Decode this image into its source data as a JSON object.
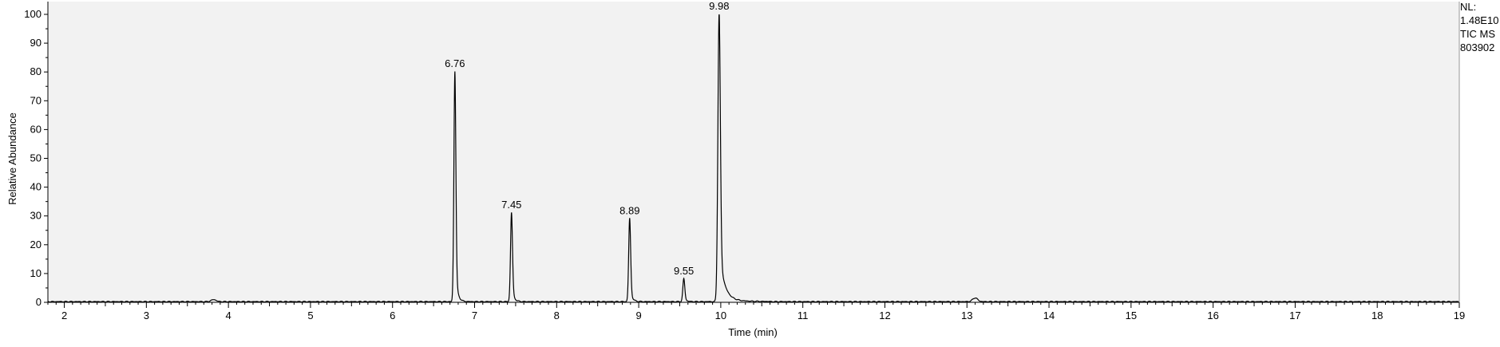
{
  "chart_data": {
    "type": "line",
    "ylabel": "Relative Abundance",
    "xlabel": "Time (min)",
    "xlim": [
      1.8,
      19.0
    ],
    "ylim": [
      0,
      100
    ],
    "x_ticks": [
      "2",
      "3",
      "4",
      "5",
      "6",
      "7",
      "8",
      "9",
      "10",
      "11",
      "12",
      "13",
      "14",
      "15",
      "16",
      "17",
      "18",
      "19"
    ],
    "y_ticks": [
      "0",
      "10",
      "20",
      "30",
      "40",
      "50",
      "60",
      "70",
      "80",
      "90",
      "100"
    ],
    "grid": false,
    "peaks": [
      {
        "x": 6.76,
        "y": 80,
        "label": "6.76"
      },
      {
        "x": 7.45,
        "y": 31,
        "label": "7.45"
      },
      {
        "x": 8.89,
        "y": 29,
        "label": "8.89"
      },
      {
        "x": 9.55,
        "y": 8,
        "label": "9.55"
      },
      {
        "x": 9.98,
        "y": 100,
        "label": "9.98"
      }
    ],
    "minor_peaks": [
      {
        "x": 3.82,
        "y": 0.7
      },
      {
        "x": 13.1,
        "y": 1.3
      }
    ]
  },
  "info_panel": {
    "line1": "NL:",
    "line2": "1.48E10",
    "line3": "TIC  MS",
    "line4": "803902"
  },
  "colors": {
    "plot_background": "#f2f2f2",
    "trace": "#000000",
    "frame": "#000000"
  }
}
